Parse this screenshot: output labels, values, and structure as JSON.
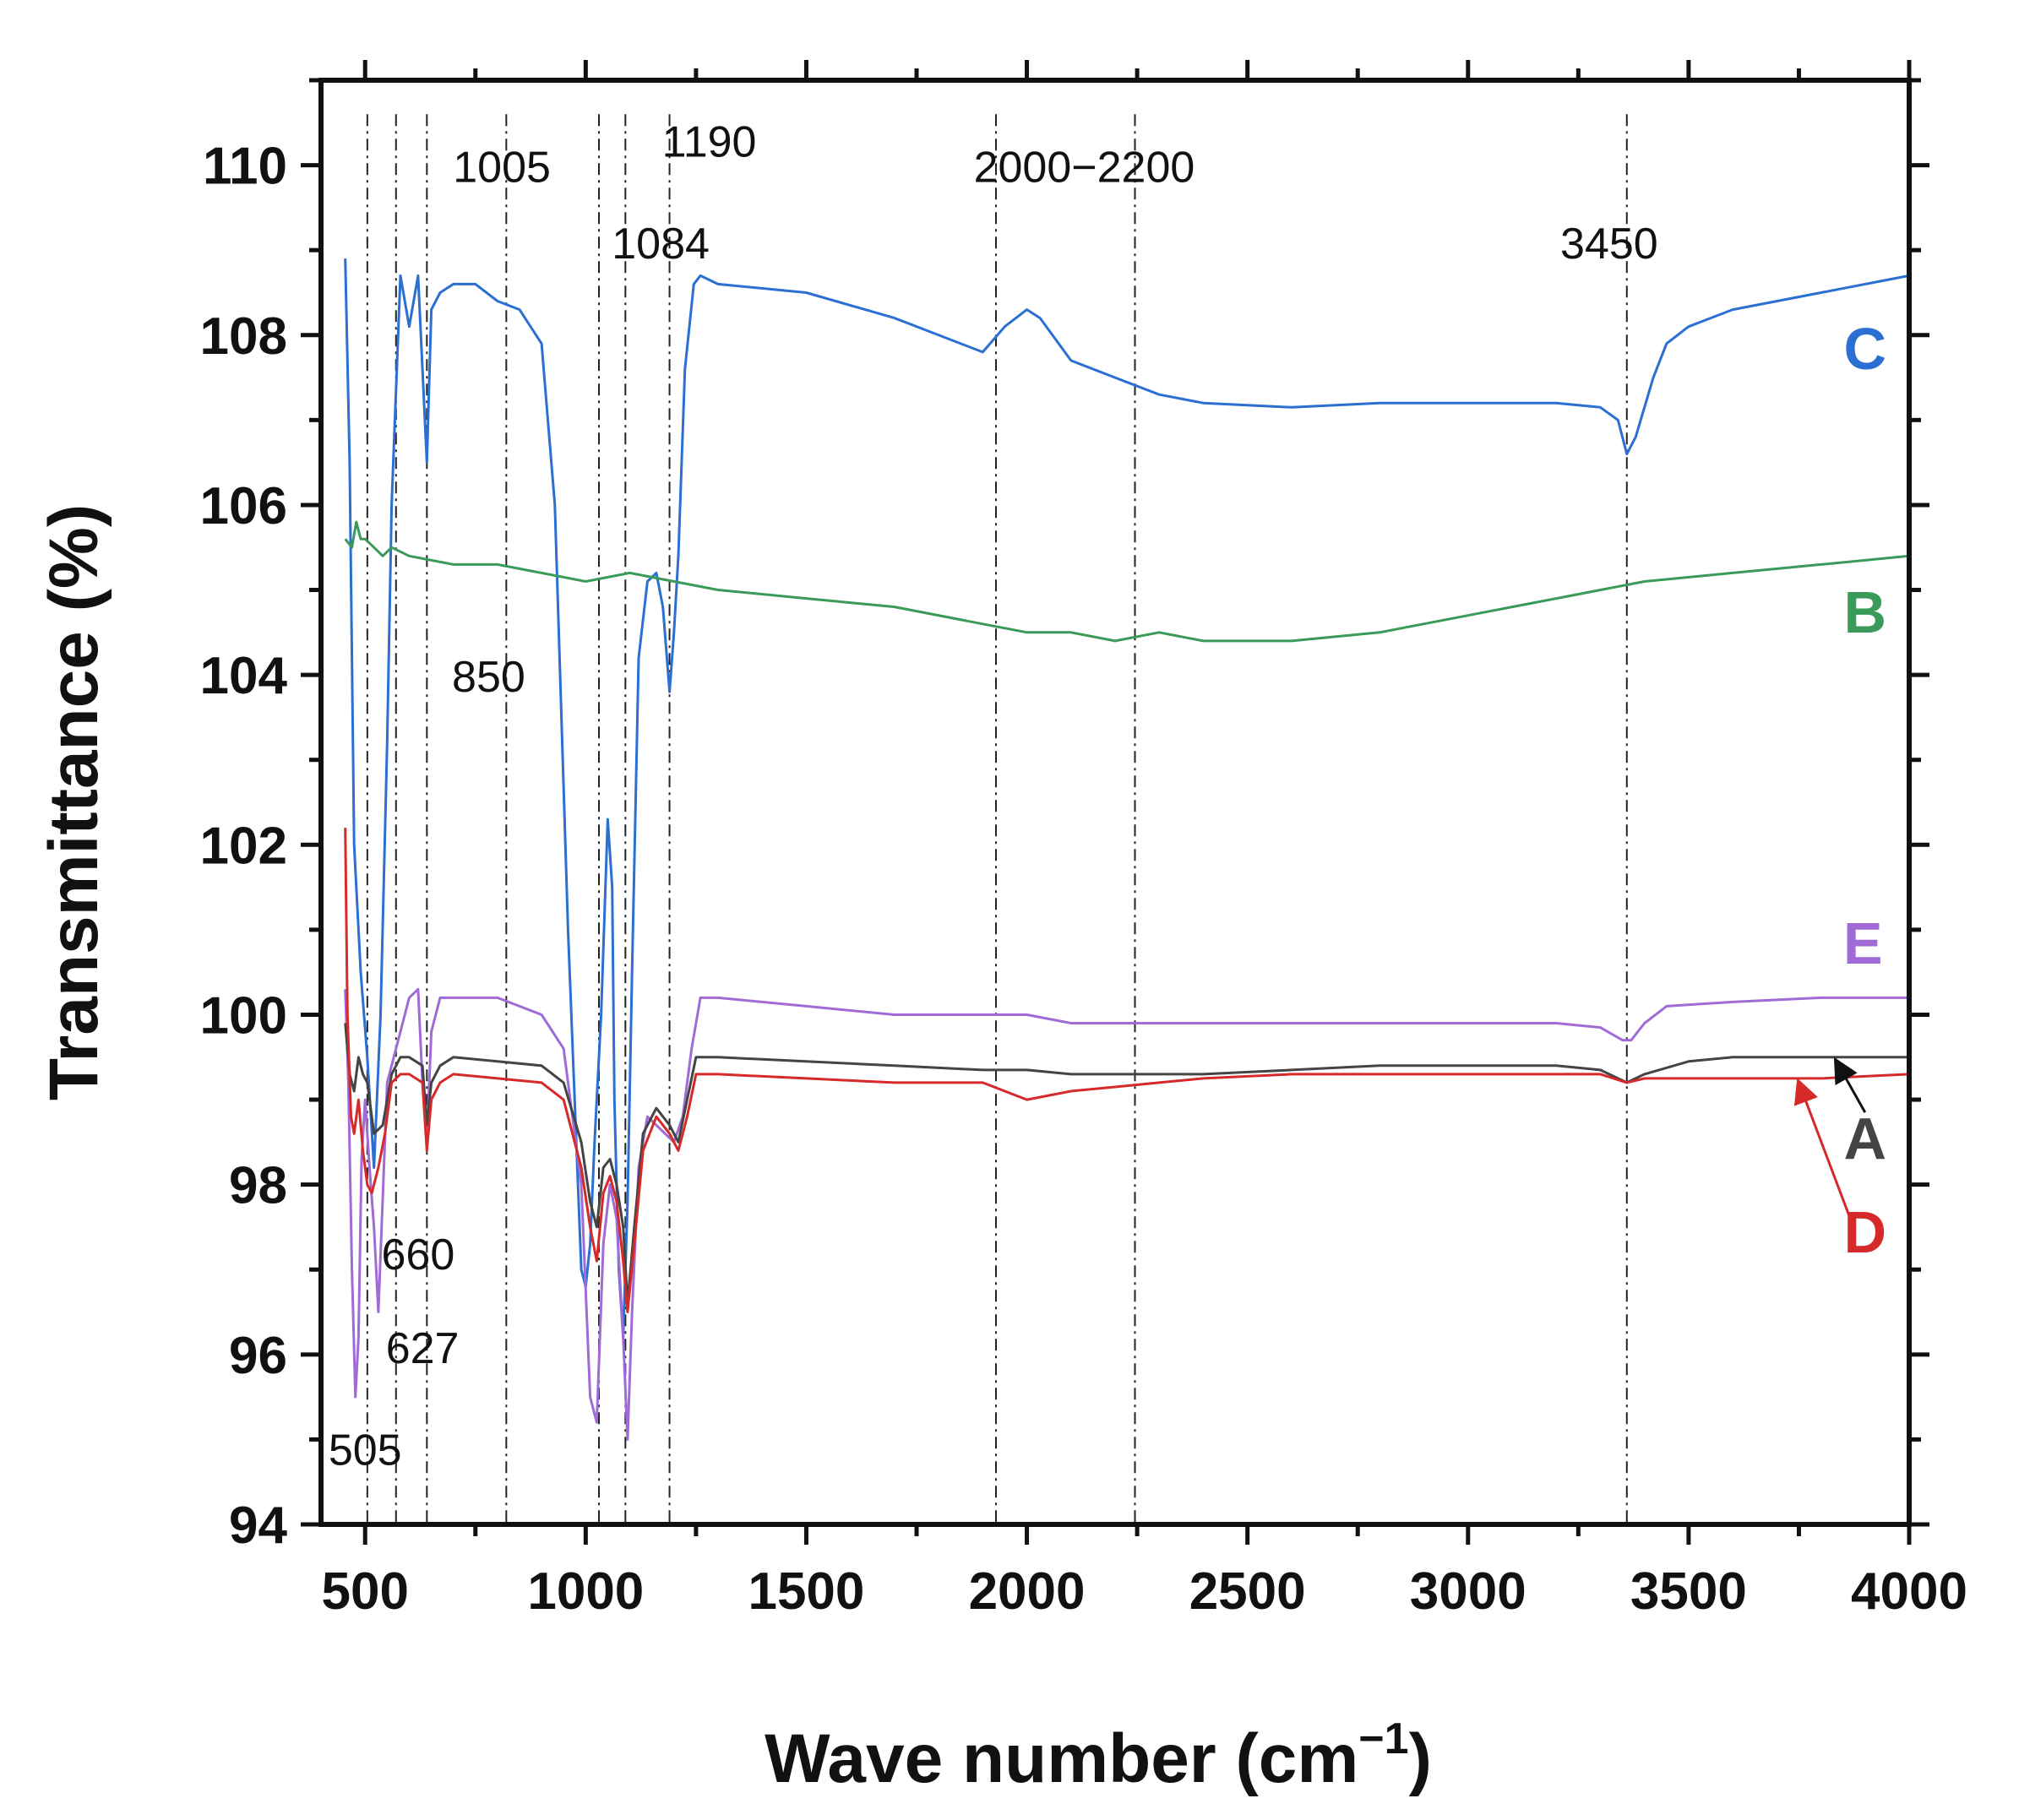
{
  "chart_data": {
    "type": "line",
    "xlabel": "Wave number (cm",
    "xlabel_sup": "−1",
    "xlabel_end": ")",
    "ylabel": "Transmittance (%)",
    "xlim": [
      400,
      4000
    ],
    "ylim": [
      94,
      111
    ],
    "x_ticks": [
      500,
      1000,
      1500,
      2000,
      2500,
      3000,
      3500,
      4000
    ],
    "y_ticks": [
      94,
      96,
      98,
      100,
      102,
      104,
      106,
      108,
      110
    ],
    "grid": false,
    "peak_annotations": [
      {
        "label": "505",
        "x": 505,
        "text_x": 500,
        "text_y": 94.7
      },
      {
        "label": "627",
        "x": 570,
        "text_x": 630,
        "text_y": 95.9
      },
      {
        "label": "660",
        "x": 640,
        "text_x": 620,
        "text_y": 97.0
      },
      {
        "label": "850",
        "x": 820,
        "text_x": 780,
        "text_y": 103.8
      },
      {
        "label": "1005",
        "x": 1030,
        "text_x": 810,
        "text_y": 109.8
      },
      {
        "label": "1084",
        "x": 1090,
        "text_x": 1170,
        "text_y": 108.9
      },
      {
        "label": "1190",
        "x": 1190,
        "text_x": 1280,
        "text_y": 110.1
      },
      {
        "label": "2000−2200",
        "x": 1930,
        "x2": 2245,
        "text_x": 2130,
        "text_y": 109.8
      },
      {
        "label": "3450",
        "x": 3360,
        "text_x": 3320,
        "text_y": 108.9
      }
    ],
    "series": [
      {
        "name": "C",
        "color": "#2a6fd1",
        "label_x": 3900,
        "label_y": 107.6,
        "x": [
          455,
          465,
          475,
          490,
          505,
          520,
          535,
          550,
          560,
          580,
          600,
          620,
          640,
          650,
          670,
          700,
          750,
          800,
          850,
          900,
          930,
          960,
          990,
          1000,
          1010,
          1020,
          1035,
          1050,
          1060,
          1065,
          1075,
          1085,
          1095,
          1105,
          1120,
          1140,
          1160,
          1175,
          1190,
          1200,
          1210,
          1225,
          1245,
          1260,
          1300,
          1500,
          1700,
          1900,
          1950,
          2000,
          2030,
          2100,
          2200,
          2300,
          2400,
          2600,
          2800,
          3000,
          3200,
          3300,
          3340,
          3360,
          3380,
          3420,
          3450,
          3500,
          3600,
          3800,
          4000
        ],
        "values": [
          108.9,
          106.5,
          102.0,
          100.5,
          99.5,
          98.2,
          100.0,
          103.2,
          106.0,
          108.7,
          108.1,
          108.7,
          106.5,
          108.3,
          108.5,
          108.6,
          108.6,
          108.4,
          108.3,
          107.9,
          106.0,
          101.0,
          97.0,
          96.8,
          97.3,
          98.5,
          100.0,
          102.3,
          101.5,
          99.0,
          97.0,
          96.2,
          97.8,
          100.5,
          104.2,
          105.1,
          105.2,
          104.8,
          103.8,
          104.5,
          105.4,
          107.6,
          108.6,
          108.7,
          108.6,
          108.5,
          108.2,
          107.8,
          108.1,
          108.3,
          108.2,
          107.7,
          107.5,
          107.3,
          107.2,
          107.15,
          107.2,
          107.2,
          107.2,
          107.15,
          107.0,
          106.6,
          106.8,
          107.5,
          107.9,
          108.1,
          108.3,
          108.5,
          108.7
        ]
      },
      {
        "name": "B",
        "color": "#3a9a5a",
        "label_x": 3900,
        "label_y": 104.5,
        "x": [
          455,
          470,
          480,
          490,
          500,
          520,
          540,
          560,
          600,
          700,
          800,
          900,
          1000,
          1100,
          1200,
          1300,
          1500,
          1700,
          1900,
          2000,
          2100,
          2200,
          2300,
          2400,
          2600,
          2800,
          3000,
          3200,
          3400,
          3600,
          3800,
          4000
        ],
        "values": [
          105.6,
          105.5,
          105.8,
          105.6,
          105.6,
          105.5,
          105.4,
          105.5,
          105.4,
          105.3,
          105.3,
          105.2,
          105.1,
          105.2,
          105.1,
          105.0,
          104.9,
          104.8,
          104.6,
          104.5,
          104.5,
          104.4,
          104.5,
          104.4,
          104.4,
          104.5,
          104.7,
          104.9,
          105.1,
          105.2,
          105.3,
          105.4
        ]
      },
      {
        "name": "E",
        "color": "#a06bd6",
        "label_x": 3895,
        "label_y": 100.6,
        "x": [
          455,
          462,
          470,
          478,
          485,
          492,
          500,
          510,
          520,
          530,
          550,
          575,
          600,
          620,
          630,
          640,
          650,
          670,
          700,
          800,
          900,
          950,
          990,
          1010,
          1025,
          1040,
          1055,
          1070,
          1085,
          1095,
          1105,
          1120,
          1140,
          1160,
          1180,
          1200,
          1220,
          1240,
          1260,
          1300,
          1500,
          1700,
          1900,
          2000,
          2100,
          2200,
          2400,
          2600,
          2800,
          3000,
          3200,
          3300,
          3350,
          3370,
          3400,
          3450,
          3600,
          3800,
          4000
        ],
        "values": [
          100.3,
          99.2,
          97.0,
          95.5,
          96.2,
          98.3,
          99.0,
          98.2,
          97.5,
          96.5,
          99.2,
          99.7,
          100.2,
          100.3,
          99.2,
          98.5,
          99.8,
          100.2,
          100.2,
          100.2,
          100.0,
          99.6,
          98.0,
          95.5,
          95.2,
          97.3,
          98.0,
          97.6,
          96.2,
          95.0,
          96.5,
          98.2,
          98.8,
          98.7,
          98.6,
          98.5,
          98.8,
          99.6,
          100.2,
          100.2,
          100.1,
          100.0,
          100.0,
          100.0,
          99.9,
          99.9,
          99.9,
          99.9,
          99.9,
          99.9,
          99.9,
          99.85,
          99.7,
          99.7,
          99.9,
          100.1,
          100.15,
          100.2,
          100.2
        ]
      },
      {
        "name": "A",
        "color": "#444444",
        "label_x": 3900,
        "label_y": 98.3,
        "x": [
          455,
          465,
          475,
          485,
          495,
          505,
          520,
          540,
          560,
          580,
          600,
          630,
          640,
          650,
          670,
          700,
          800,
          900,
          950,
          990,
          1010,
          1025,
          1040,
          1055,
          1070,
          1085,
          1095,
          1110,
          1130,
          1160,
          1190,
          1210,
          1230,
          1250,
          1300,
          1500,
          1700,
          1900,
          2000,
          2100,
          2200,
          2400,
          2600,
          2800,
          3000,
          3200,
          3300,
          3360,
          3400,
          3500,
          3600,
          3800,
          4000
        ],
        "values": [
          99.9,
          99.3,
          99.1,
          99.5,
          99.3,
          99.2,
          98.6,
          98.7,
          99.3,
          99.5,
          99.5,
          99.4,
          98.7,
          99.2,
          99.4,
          99.5,
          99.45,
          99.4,
          99.2,
          98.5,
          97.8,
          97.5,
          98.2,
          98.3,
          98.0,
          97.5,
          96.6,
          97.5,
          98.6,
          98.9,
          98.7,
          98.5,
          99.0,
          99.5,
          99.5,
          99.45,
          99.4,
          99.35,
          99.35,
          99.3,
          99.3,
          99.3,
          99.35,
          99.4,
          99.4,
          99.4,
          99.35,
          99.2,
          99.3,
          99.45,
          99.5,
          99.5,
          99.5
        ]
      },
      {
        "name": "D",
        "color": "#d62a2a",
        "label_x": 3900,
        "label_y": 97.2,
        "x": [
          455,
          460,
          468,
          475,
          485,
          495,
          505,
          515,
          530,
          545,
          560,
          580,
          600,
          630,
          640,
          650,
          670,
          700,
          800,
          900,
          950,
          990,
          1010,
          1025,
          1040,
          1055,
          1070,
          1085,
          1095,
          1110,
          1130,
          1160,
          1190,
          1210,
          1230,
          1250,
          1300,
          1500,
          1700,
          1900,
          2000,
          2100,
          2200,
          2300,
          2400,
          2600,
          2800,
          3000,
          3200,
          3300,
          3360,
          3400,
          3500,
          3600,
          3800,
          4000
        ],
        "values": [
          102.2,
          100.0,
          98.8,
          98.6,
          99.0,
          98.4,
          98.0,
          97.9,
          98.2,
          98.6,
          99.2,
          99.3,
          99.3,
          99.2,
          98.4,
          99.0,
          99.2,
          99.3,
          99.25,
          99.2,
          99.0,
          98.2,
          97.5,
          97.1,
          97.9,
          98.1,
          97.8,
          97.1,
          96.5,
          97.3,
          98.4,
          98.8,
          98.6,
          98.4,
          98.8,
          99.3,
          99.3,
          99.25,
          99.2,
          99.2,
          99.0,
          99.1,
          99.15,
          99.2,
          99.25,
          99.3,
          99.3,
          99.3,
          99.3,
          99.3,
          99.2,
          99.25,
          99.25,
          99.25,
          99.25,
          99.3
        ]
      }
    ],
    "pointer_arrows": [
      {
        "series": "A",
        "color": "#111111",
        "from_x": 3900,
        "from_y": 98.85,
        "to_x": 3835,
        "to_y": 99.45
      },
      {
        "series": "D",
        "color": "#d62a2a",
        "from_x": 3870,
        "from_y": 97.55,
        "to_x": 3750,
        "to_y": 99.2
      }
    ]
  }
}
